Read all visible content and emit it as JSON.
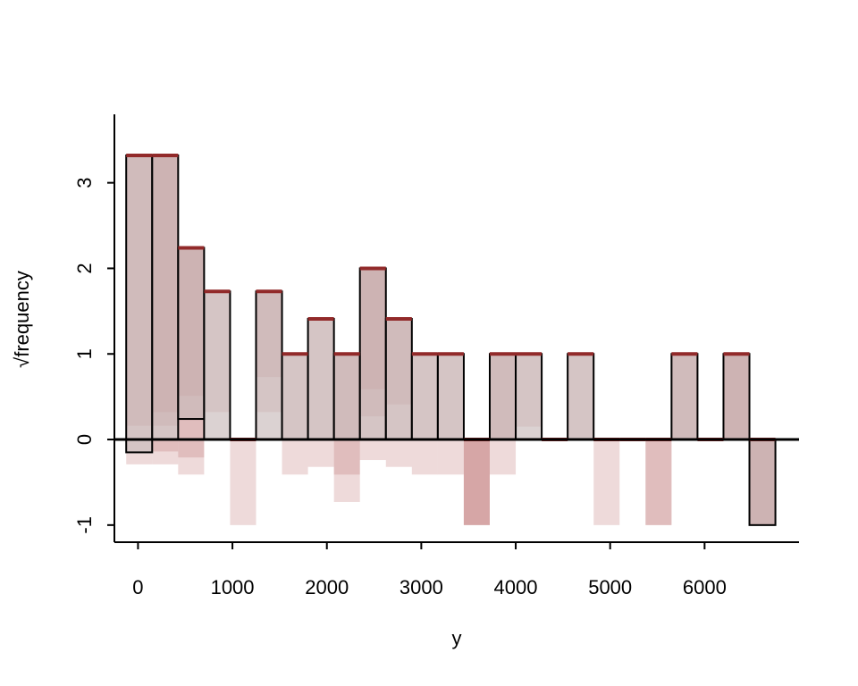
{
  "chart_data": {
    "type": "bar",
    "title": "",
    "xlabel": "y",
    "ylabel": "√frequency",
    "xlim": [
      -250,
      7000
    ],
    "ylim": [
      -1.2,
      3.8
    ],
    "xticks": [
      0,
      1000,
      2000,
      3000,
      4000,
      5000,
      6000
    ],
    "yticks": [
      -1,
      0,
      1,
      2,
      3
    ],
    "colors": {
      "observed_bar": "#cccccc",
      "expected_line": "#922a2a",
      "simulation_fill": "#b05555",
      "axis": "#000000"
    },
    "bins": [
      {
        "x0": -125,
        "x1": 150,
        "hanging_bottom": -0.15,
        "expected": 3.32,
        "sim": [
          3.16,
          3.46,
          3.61
        ]
      },
      {
        "x0": 150,
        "x1": 425,
        "hanging_bottom": 0.0,
        "expected": 3.32,
        "sim": [
          3.0,
          3.16,
          3.46,
          3.61
        ]
      },
      {
        "x0": 425,
        "x1": 700,
        "hanging_bottom": 0.24,
        "expected": 2.24,
        "sim": [
          1.73,
          2.0,
          2.45,
          2.65
        ]
      },
      {
        "x0": 700,
        "x1": 975,
        "hanging_bottom": 0.0,
        "expected": 1.73,
        "sim": [
          1.41,
          1.73
        ]
      },
      {
        "x0": 975,
        "x1": 1250,
        "hanging_bottom": 0.0,
        "expected": 0.0,
        "sim": [
          1.0
        ]
      },
      {
        "x0": 1250,
        "x1": 1525,
        "hanging_bottom": 0.0,
        "expected": 1.73,
        "sim": [
          1.0,
          1.41,
          1.73
        ]
      },
      {
        "x0": 1525,
        "x1": 1800,
        "hanging_bottom": 0.0,
        "expected": 1.0,
        "sim": [
          1.0,
          1.41
        ]
      },
      {
        "x0": 1800,
        "x1": 2075,
        "hanging_bottom": 0.0,
        "expected": 1.41,
        "sim": [
          1.41,
          1.73
        ]
      },
      {
        "x0": 2075,
        "x1": 2350,
        "hanging_bottom": 0.0,
        "expected": 1.0,
        "sim": [
          1.0,
          1.41,
          1.73
        ]
      },
      {
        "x0": 2350,
        "x1": 2625,
        "hanging_bottom": 0.0,
        "expected": 2.0,
        "sim": [
          1.41,
          1.73,
          2.0,
          2.24
        ]
      },
      {
        "x0": 2625,
        "x1": 2900,
        "hanging_bottom": 0.0,
        "expected": 1.41,
        "sim": [
          1.0,
          1.41,
          1.73
        ]
      },
      {
        "x0": 2900,
        "x1": 3175,
        "hanging_bottom": 0.0,
        "expected": 1.0,
        "sim": [
          1.0,
          1.41
        ]
      },
      {
        "x0": 3175,
        "x1": 3450,
        "hanging_bottom": 0.0,
        "expected": 1.0,
        "sim": [
          1.0,
          1.41
        ]
      },
      {
        "x0": 3450,
        "x1": 3725,
        "hanging_bottom": 0.0,
        "expected": 0.0,
        "sim": [
          1.0,
          1.0,
          1.0
        ]
      },
      {
        "x0": 3725,
        "x1": 4000,
        "hanging_bottom": 0.0,
        "expected": 1.0,
        "sim": [
          1.0,
          1.0,
          1.41
        ]
      },
      {
        "x0": 4000,
        "x1": 4275,
        "hanging_bottom": 0.0,
        "expected": 1.0,
        "sim": [
          0.85,
          1.0
        ]
      },
      {
        "x0": 4275,
        "x1": 4550,
        "hanging_bottom": 0.0,
        "expected": 0.0,
        "sim": []
      },
      {
        "x0": 4550,
        "x1": 4825,
        "hanging_bottom": 0.0,
        "expected": 1.0,
        "sim": [
          1.0,
          1.0
        ]
      },
      {
        "x0": 4825,
        "x1": 5100,
        "hanging_bottom": 0.0,
        "expected": 0.0,
        "sim": [
          1.0
        ]
      },
      {
        "x0": 5100,
        "x1": 5375,
        "hanging_bottom": 0.0,
        "expected": 0.0,
        "sim": []
      },
      {
        "x0": 5375,
        "x1": 5650,
        "hanging_bottom": 0.0,
        "expected": 0.0,
        "sim": [
          1.0,
          1.0
        ]
      },
      {
        "x0": 5650,
        "x1": 5925,
        "hanging_bottom": 0.0,
        "expected": 1.0,
        "sim": [
          1.0,
          1.0,
          1.0
        ]
      },
      {
        "x0": 5925,
        "x1": 6200,
        "hanging_bottom": 0.0,
        "expected": 0.0,
        "sim": []
      },
      {
        "x0": 6200,
        "x1": 6475,
        "hanging_bottom": 0.0,
        "expected": 1.0,
        "sim": [
          1.0,
          1.0,
          1.0,
          1.0
        ]
      },
      {
        "x0": 6475,
        "x1": 6750,
        "hanging_bottom": -1.0,
        "expected": 0.0,
        "sim": [
          1.0,
          1.0,
          1.0,
          1.0
        ]
      }
    ]
  }
}
